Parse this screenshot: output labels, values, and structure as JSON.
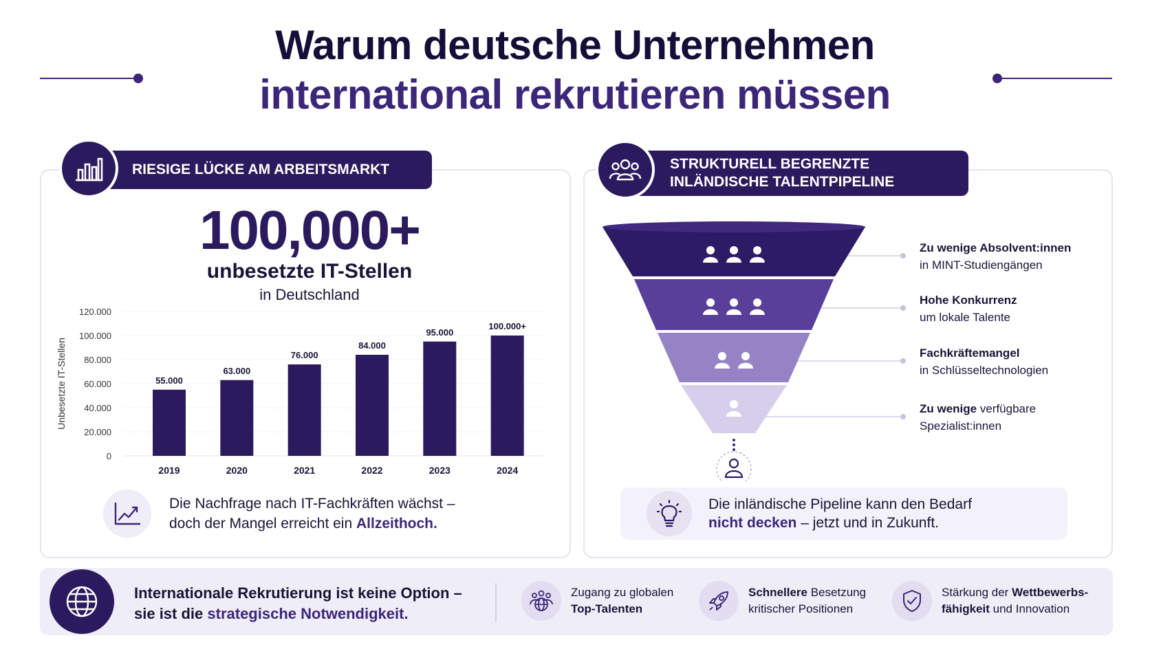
{
  "title": {
    "line1": "Warum deutsche Unternehmen",
    "line2": "international rekrutieren müssen"
  },
  "left_panel": {
    "header": "RIESIGE LÜCKE AM ARBEITSMARKT",
    "header_icon": "bar-chart-icon",
    "big_number": "100,000+",
    "big_label": "unbesetzte IT-Stellen",
    "big_sublabel": "in Deutschland",
    "insight_icon": "trend-up-icon",
    "insight_line1": "Die Nachfrage nach IT-Fachkräften wächst –",
    "insight_line2_pre": "doch der Mangel erreicht ein ",
    "insight_line2_hl": "Allzeithoch."
  },
  "chart_data": {
    "type": "bar",
    "categories": [
      "2019",
      "2020",
      "2021",
      "2022",
      "2023",
      "2024"
    ],
    "values": [
      55000,
      63000,
      76000,
      84000,
      95000,
      100000
    ],
    "data_labels": [
      "55.000",
      "63.000",
      "76.000",
      "84.000",
      "95.000",
      "100.000+"
    ],
    "ylabel": "Unbesetzte IT-Stellen",
    "ylim": [
      0,
      120000
    ],
    "yticks": [
      0,
      20000,
      40000,
      60000,
      80000,
      100000,
      120000
    ],
    "ytick_labels": [
      "0",
      "20.000",
      "40.000",
      "60.000",
      "80.000",
      "100.000",
      "120.000"
    ],
    "grid": true,
    "bar_color": "#2b1a5e"
  },
  "right_panel": {
    "header_line1": "STRUKTURELL BEGRENZTE",
    "header_line2": "INLÄNDISCHE TALENTPIPELINE",
    "header_icon": "people-group-icon",
    "funnel": [
      {
        "bold": "Zu wenige Absolvent:innen",
        "rest": "in MINT-Studiengängen",
        "people": 3,
        "color": "#2e1b66"
      },
      {
        "bold": "Hohe Konkurrenz",
        "rest": "um lokale Talente",
        "people": 3,
        "color": "#5a3f9a"
      },
      {
        "bold": "Fachkräftemangel",
        "rest": "in Schlüsseltechnologien",
        "people": 2,
        "color": "#9683c6"
      },
      {
        "bold": "Zu wenige",
        "bold_rest": " verfügbare",
        "rest": "Spezialist:innen",
        "people": 1,
        "color": "#d6cfeb"
      }
    ],
    "note_icon": "lightbulb-icon",
    "note_line1": "Die inländische Pipeline kann den Bedarf",
    "note_line2_hl": "nicht decken",
    "note_line2_rest": " – jetzt und in Zukunft."
  },
  "bottom": {
    "icon": "globe-icon",
    "line1": "Internationale Rekrutierung ist keine Option –",
    "line2_pre": "sie ist die ",
    "line2_hl": "strategische Notwendigkeit.",
    "benefits": [
      {
        "icon": "global-talent-icon",
        "pre": "Zugang zu globalen",
        "bold": "Top-Talenten"
      },
      {
        "icon": "rocket-icon",
        "bold": "Schnellere",
        "pre": " Besetzung",
        "line2": "kritischer Positionen"
      },
      {
        "icon": "shield-check-icon",
        "pre": "Stärkung der ",
        "bold": "Wettbewerbs-",
        "bold2": "fähigkeit",
        "line2": " und Innovation"
      }
    ]
  },
  "colors": {
    "primary": "#2b1a5e",
    "accent": "#3b2678",
    "panel_border": "#e6e3ee",
    "light_bg": "#efedf7"
  }
}
